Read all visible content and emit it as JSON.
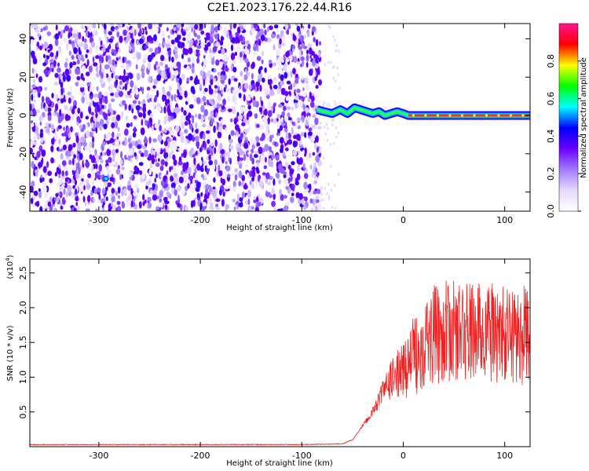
{
  "title": "C2E1.2023.176.22.44.R16",
  "colors": {
    "snr_line": "#ee2222",
    "ridge": "#ff2a2a",
    "noise_dark": "#6a00ff",
    "noise_light": "#cbb3ff",
    "colorbar_stops": [
      "#ffffff",
      "#e6d9ff",
      "#a37bff",
      "#6a00ff",
      "#0000ff",
      "#00ffff",
      "#00ff00",
      "#ffff00",
      "#ff0000",
      "#ff1493"
    ]
  },
  "chart_data": [
    {
      "type": "heatmap",
      "xlabel": "Height of straight line (km)",
      "ylabel": "Frequency (Hz)",
      "xlim": [
        -368,
        125
      ],
      "ylim": [
        -50,
        48
      ],
      "xticks": [
        -300,
        -200,
        -100,
        0,
        100
      ],
      "xtick_labels": [
        "-300",
        "-200",
        "-100",
        "0",
        "100"
      ],
      "yticks": [
        -40,
        -20,
        0,
        20,
        40
      ],
      "ytick_labels": [
        "-40",
        "-20",
        "0",
        "20",
        "40"
      ],
      "noise_region_x": [
        -368,
        -82
      ],
      "ridge": {
        "x": [
          -85,
          -78,
          -70,
          -62,
          -55,
          -48,
          -42,
          -36,
          -30,
          -24,
          -18,
          -12,
          -6,
          0,
          5,
          20,
          40,
          60,
          80,
          100,
          125
        ],
        "frequency": [
          3,
          2,
          1,
          3,
          1,
          4,
          3,
          2,
          1,
          2,
          0,
          1,
          2,
          1,
          0,
          0,
          0,
          0,
          0,
          0,
          0
        ]
      },
      "colorbar": {
        "label": "Normalized spectral amplitude",
        "range": [
          0,
          1
        ],
        "ticks": [
          0.0,
          0.2,
          0.4,
          0.6,
          0.8
        ],
        "tick_labels": [
          "0.0",
          "0.2",
          "0.4",
          "0.6",
          "0.8"
        ]
      }
    },
    {
      "type": "line",
      "xlabel": "Height of straight line (km)",
      "ylabel": "SNR (10 * v/v)",
      "ylabel_exponent": "(x10",
      "ylabel_exponent_power": "4",
      "ylabel_exponent_close": ")",
      "xlim": [
        -368,
        125
      ],
      "ylim": [
        0,
        27000
      ],
      "xticks": [
        -300,
        -200,
        -100,
        0,
        100
      ],
      "xtick_labels": [
        "-300",
        "-200",
        "-100",
        "0",
        "100"
      ],
      "yticks": [
        5000,
        10000,
        15000,
        20000,
        25000
      ],
      "ytick_labels": [
        "0.5",
        "1.0",
        "1.5",
        "2.0",
        "2.5"
      ],
      "series": [
        {
          "x": [
            -368,
            -300,
            -200,
            -100,
            -60,
            -50,
            -40,
            -30,
            -20,
            -10,
            0,
            10,
            20,
            30,
            40,
            60,
            80,
            100,
            125
          ],
          "values": [
            300,
            300,
            300,
            300,
            400,
            1000,
            3000,
            5000,
            8000,
            10000,
            11000,
            13000,
            15000,
            16000,
            16500,
            16500,
            16500,
            16000,
            16000
          ]
        }
      ]
    }
  ]
}
